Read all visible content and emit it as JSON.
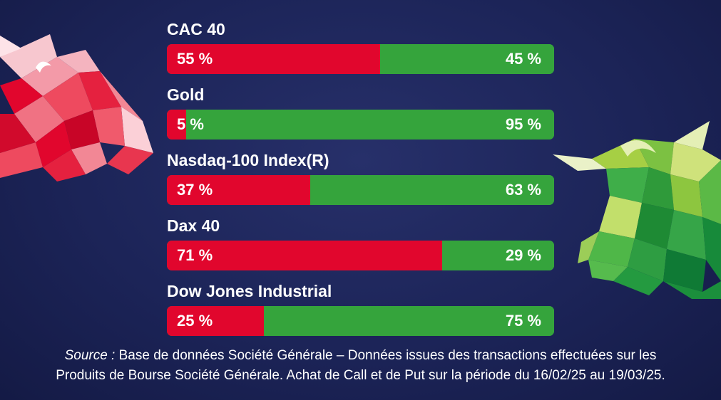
{
  "chart_data": {
    "type": "bar",
    "orientation": "horizontal",
    "stacked": true,
    "normalized": "percent",
    "categories": [
      "CAC 40",
      "Gold",
      "Nasdaq-100 Index(R)",
      "Dax 40",
      "Dow Jones Industrial"
    ],
    "series": [
      {
        "values": [
          55,
          5,
          37,
          71,
          25
        ],
        "color": "#e1062d"
      },
      {
        "values": [
          45,
          95,
          63,
          29,
          75
        ],
        "color": "#35a43c"
      }
    ],
    "value_labels": {
      "left": [
        "55 %",
        "5 %",
        "37 %",
        "71 %",
        "25 %"
      ],
      "right": [
        "45 %",
        "95 %",
        "63 %",
        "29 %",
        "75 %"
      ]
    },
    "xlim": [
      0,
      100
    ]
  },
  "source": {
    "label": "Source :",
    "text": "Base de données Société Générale – Données issues des transactions effectuées sur les",
    "line2": "Produits de Bourse Société Générale. Achat de Call et de Put sur la période du 16/02/25 au 19/03/25."
  },
  "colors": {
    "background": "#1c2458",
    "bear": "#e1062d",
    "bull": "#35a43c",
    "text": "#ffffff"
  },
  "icons": [
    "bear-head-icon",
    "bull-head-icon"
  ]
}
